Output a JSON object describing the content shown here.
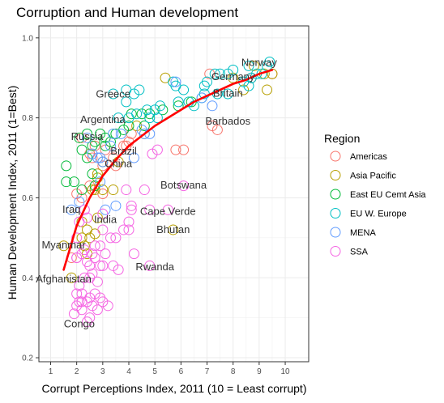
{
  "chart_data": {
    "type": "scatter",
    "title": "Corruption and Human development",
    "xlabel": "Corrupt Perceptions Index, 2011 (10 = Least corrupt)",
    "ylabel": "Human Development Index, 2011 (1=Best)",
    "xlim": [
      0.55,
      10.9
    ],
    "ylim": [
      0.19,
      1.03
    ],
    "x_ticks": [
      1,
      2,
      3,
      4,
      5,
      6,
      7,
      8,
      9,
      10
    ],
    "x_tick_labels": [
      "1",
      "2",
      "3",
      "4",
      "5",
      "6",
      "7",
      "8",
      "9",
      "10"
    ],
    "y_ticks": [
      0.2,
      0.4,
      0.6,
      0.8,
      1.0
    ],
    "y_tick_labels": [
      "0.2",
      "0.4",
      "0.6",
      "0.8",
      "1.0"
    ],
    "grid": true,
    "legend": {
      "title": "Region",
      "placement": "right",
      "entries": [
        "Americas",
        "Asia Pacific",
        "East EU Cemt Asia",
        "EU W. Europe",
        "MENA",
        "SSA"
      ]
    },
    "series": [
      {
        "name": "Americas",
        "color": "#F8766D",
        "points": [
          [
            7.1,
            0.91
          ],
          [
            8.7,
            0.9
          ],
          [
            9.5,
            0.91
          ],
          [
            7.2,
            0.78
          ],
          [
            7.4,
            0.77
          ],
          [
            6.1,
            0.72
          ],
          [
            5.8,
            0.72
          ],
          [
            3.8,
            0.73
          ],
          [
            4.0,
            0.74
          ],
          [
            4.1,
            0.76
          ],
          [
            3.1,
            0.72
          ],
          [
            2.7,
            0.73
          ],
          [
            3.4,
            0.7
          ],
          [
            3.0,
            0.68
          ],
          [
            2.5,
            0.71
          ],
          [
            2.2,
            0.75
          ],
          [
            3.5,
            0.68
          ],
          [
            3.0,
            0.61
          ],
          [
            2.5,
            0.63
          ],
          [
            2.6,
            0.62
          ],
          [
            2.2,
            0.6
          ],
          [
            2.0,
            0.61
          ],
          [
            1.8,
            0.45
          ],
          [
            2.6,
            0.7
          ],
          [
            3.9,
            0.73
          ]
        ]
      },
      {
        "name": "Asia Pacific",
        "color": "#B79F00",
        "points": [
          [
            8.8,
            0.93
          ],
          [
            9.2,
            0.91
          ],
          [
            9.3,
            0.87
          ],
          [
            9.5,
            0.91
          ],
          [
            8.0,
            0.9
          ],
          [
            5.4,
            0.9
          ],
          [
            8.4,
            0.87
          ],
          [
            4.6,
            0.76
          ],
          [
            4.3,
            0.78
          ],
          [
            3.6,
            0.69
          ],
          [
            3.0,
            0.69
          ],
          [
            2.8,
            0.65
          ],
          [
            3.0,
            0.62
          ],
          [
            2.8,
            0.55
          ],
          [
            2.6,
            0.62
          ],
          [
            2.7,
            0.51
          ],
          [
            2.4,
            0.52
          ],
          [
            2.5,
            0.5
          ],
          [
            2.2,
            0.5
          ],
          [
            1.5,
            0.48
          ],
          [
            2.7,
            0.62
          ],
          [
            2.8,
            0.66
          ],
          [
            3.4,
            0.62
          ],
          [
            5.7,
            0.52
          ],
          [
            2.4,
            0.46
          ],
          [
            2.2,
            0.54
          ],
          [
            2.3,
            0.48
          ],
          [
            1.8,
            0.4
          ]
        ]
      },
      {
        "name": "East EU Cemt Asia",
        "color": "#00BA38",
        "points": [
          [
            6.4,
            0.84
          ],
          [
            5.9,
            0.83
          ],
          [
            5.3,
            0.82
          ],
          [
            4.8,
            0.81
          ],
          [
            4.1,
            0.81
          ],
          [
            4.6,
            0.78
          ],
          [
            3.8,
            0.77
          ],
          [
            4.0,
            0.78
          ],
          [
            3.5,
            0.76
          ],
          [
            3.3,
            0.74
          ],
          [
            3.1,
            0.75
          ],
          [
            2.7,
            0.74
          ],
          [
            2.4,
            0.76
          ],
          [
            2.6,
            0.73
          ],
          [
            2.1,
            0.75
          ],
          [
            2.4,
            0.7
          ],
          [
            2.2,
            0.72
          ],
          [
            1.6,
            0.68
          ],
          [
            1.9,
            0.64
          ],
          [
            2.6,
            0.66
          ],
          [
            3.1,
            0.73
          ],
          [
            2.9,
            0.76
          ],
          [
            4.5,
            0.81
          ],
          [
            2.2,
            0.62
          ],
          [
            2.7,
            0.63
          ],
          [
            1.6,
            0.64
          ]
        ]
      },
      {
        "name": "EU W. Europe",
        "color": "#00BFC4",
        "points": [
          [
            9.4,
            0.94
          ],
          [
            9.3,
            0.93
          ],
          [
            9.1,
            0.91
          ],
          [
            8.9,
            0.91
          ],
          [
            8.7,
            0.9
          ],
          [
            8.4,
            0.89
          ],
          [
            8.0,
            0.92
          ],
          [
            7.8,
            0.91
          ],
          [
            7.5,
            0.91
          ],
          [
            7.3,
            0.91
          ],
          [
            7.0,
            0.89
          ],
          [
            6.9,
            0.88
          ],
          [
            8.6,
            0.88
          ],
          [
            7.8,
            0.86
          ],
          [
            7.4,
            0.86
          ],
          [
            5.8,
            0.88
          ],
          [
            6.1,
            0.87
          ],
          [
            6.8,
            0.85
          ],
          [
            6.3,
            0.84
          ],
          [
            5.9,
            0.84
          ],
          [
            5.2,
            0.83
          ],
          [
            5.0,
            0.82
          ],
          [
            4.7,
            0.82
          ],
          [
            4.4,
            0.87
          ],
          [
            3.9,
            0.87
          ],
          [
            3.4,
            0.86
          ],
          [
            3.9,
            0.84
          ],
          [
            4.3,
            0.81
          ],
          [
            5.1,
            0.8
          ],
          [
            4.8,
            0.8
          ],
          [
            4.0,
            0.8
          ],
          [
            6.9,
            0.86
          ],
          [
            5.7,
            0.89
          ],
          [
            3.6,
            0.8
          ],
          [
            4.2,
            0.86
          ],
          [
            6.5,
            0.83
          ],
          [
            8.6,
            0.93
          ]
        ]
      },
      {
        "name": "MENA",
        "color": "#619CFF",
        "points": [
          [
            7.2,
            0.83
          ],
          [
            6.8,
            0.85
          ],
          [
            5.8,
            0.89
          ],
          [
            4.8,
            0.76
          ],
          [
            4.5,
            0.77
          ],
          [
            4.6,
            0.76
          ],
          [
            4.2,
            0.7
          ],
          [
            3.7,
            0.76
          ],
          [
            3.4,
            0.76
          ],
          [
            3.3,
            0.73
          ],
          [
            2.9,
            0.7
          ],
          [
            3.0,
            0.69
          ],
          [
            2.8,
            0.7
          ],
          [
            2.6,
            0.71
          ],
          [
            2.9,
            0.64
          ],
          [
            3.5,
            0.58
          ],
          [
            1.8,
            0.57
          ],
          [
            2.1,
            0.59
          ],
          [
            3.1,
            0.57
          ],
          [
            2.4,
            0.75
          ]
        ]
      },
      {
        "name": "SSA",
        "color": "#F564E3",
        "points": [
          [
            6.1,
            0.63
          ],
          [
            5.5,
            0.57
          ],
          [
            5.1,
            0.72
          ],
          [
            4.9,
            0.71
          ],
          [
            4.8,
            0.57
          ],
          [
            4.1,
            0.57
          ],
          [
            4.2,
            0.46
          ],
          [
            4.0,
            0.52
          ],
          [
            3.8,
            0.52
          ],
          [
            4.0,
            0.54
          ],
          [
            3.5,
            0.5
          ],
          [
            3.0,
            0.52
          ],
          [
            3.3,
            0.5
          ],
          [
            3.1,
            0.46
          ],
          [
            2.9,
            0.48
          ],
          [
            2.7,
            0.48
          ],
          [
            2.6,
            0.46
          ],
          [
            2.5,
            0.43
          ],
          [
            2.4,
            0.44
          ],
          [
            2.3,
            0.47
          ],
          [
            2.2,
            0.46
          ],
          [
            2.0,
            0.45
          ],
          [
            2.6,
            0.41
          ],
          [
            2.5,
            0.4
          ],
          [
            2.3,
            0.4
          ],
          [
            2.1,
            0.38
          ],
          [
            2.0,
            0.36
          ],
          [
            2.2,
            0.34
          ],
          [
            2.4,
            0.34
          ],
          [
            2.5,
            0.35
          ],
          [
            2.7,
            0.36
          ],
          [
            2.9,
            0.35
          ],
          [
            2.6,
            0.33
          ],
          [
            2.8,
            0.32
          ],
          [
            3.0,
            0.34
          ],
          [
            3.2,
            0.33
          ],
          [
            3.0,
            0.43
          ],
          [
            2.9,
            0.43
          ],
          [
            3.4,
            0.43
          ],
          [
            3.6,
            0.42
          ],
          [
            2.2,
            0.32
          ],
          [
            2.5,
            0.3
          ],
          [
            2.4,
            0.29
          ],
          [
            1.9,
            0.31
          ],
          [
            2.0,
            0.33
          ],
          [
            2.1,
            0.34
          ],
          [
            2.4,
            0.55
          ],
          [
            2.1,
            0.54
          ],
          [
            2.0,
            0.5
          ],
          [
            4.8,
            0.43
          ],
          [
            4.6,
            0.62
          ],
          [
            4.1,
            0.58
          ],
          [
            3.9,
            0.62
          ],
          [
            2.0,
            0.45
          ],
          [
            3.0,
            0.56
          ],
          [
            2.3,
            0.57
          ],
          [
            2.8,
            0.39
          ],
          [
            2.2,
            0.36
          ],
          [
            2.7,
            0.45
          ]
        ]
      }
    ],
    "trend": {
      "color": "#FF0000",
      "points": [
        [
          1.5,
          0.42
        ],
        [
          2.0,
          0.53
        ],
        [
          2.5,
          0.6
        ],
        [
          3.0,
          0.655
        ],
        [
          3.5,
          0.695
        ],
        [
          4.0,
          0.73
        ],
        [
          4.5,
          0.755
        ],
        [
          5.0,
          0.78
        ],
        [
          5.5,
          0.8
        ],
        [
          6.0,
          0.82
        ],
        [
          6.5,
          0.84
        ],
        [
          7.0,
          0.855
        ],
        [
          7.5,
          0.87
        ],
        [
          8.0,
          0.885
        ],
        [
          8.5,
          0.895
        ],
        [
          9.0,
          0.91
        ],
        [
          9.5,
          0.92
        ]
      ]
    },
    "annotations": [
      {
        "text": "Norway",
        "x": 9.0,
        "y": 0.94
      },
      {
        "text": "Germany",
        "x": 8.0,
        "y": 0.905
      },
      {
        "text": "Britain",
        "x": 7.8,
        "y": 0.863
      },
      {
        "text": "Greece",
        "x": 3.4,
        "y": 0.861
      },
      {
        "text": "Argentina",
        "x": 3.0,
        "y": 0.797
      },
      {
        "text": "Barbados",
        "x": 7.8,
        "y": 0.793
      },
      {
        "text": "Russia",
        "x": 2.4,
        "y": 0.755
      },
      {
        "text": "Brazil",
        "x": 3.8,
        "y": 0.718
      },
      {
        "text": "China",
        "x": 3.6,
        "y": 0.687
      },
      {
        "text": "Botswana",
        "x": 6.1,
        "y": 0.633
      },
      {
        "text": "Iraq",
        "x": 1.8,
        "y": 0.573
      },
      {
        "text": "Cape Verde",
        "x": 5.5,
        "y": 0.568
      },
      {
        "text": "India",
        "x": 3.1,
        "y": 0.547
      },
      {
        "text": "Bhutan",
        "x": 5.7,
        "y": 0.522
      },
      {
        "text": "Myanmar",
        "x": 1.5,
        "y": 0.483
      },
      {
        "text": "Rwanda",
        "x": 5.0,
        "y": 0.429
      },
      {
        "text": "Afghanistan",
        "x": 1.5,
        "y": 0.398
      },
      {
        "text": "Congo",
        "x": 2.1,
        "y": 0.286
      }
    ]
  }
}
